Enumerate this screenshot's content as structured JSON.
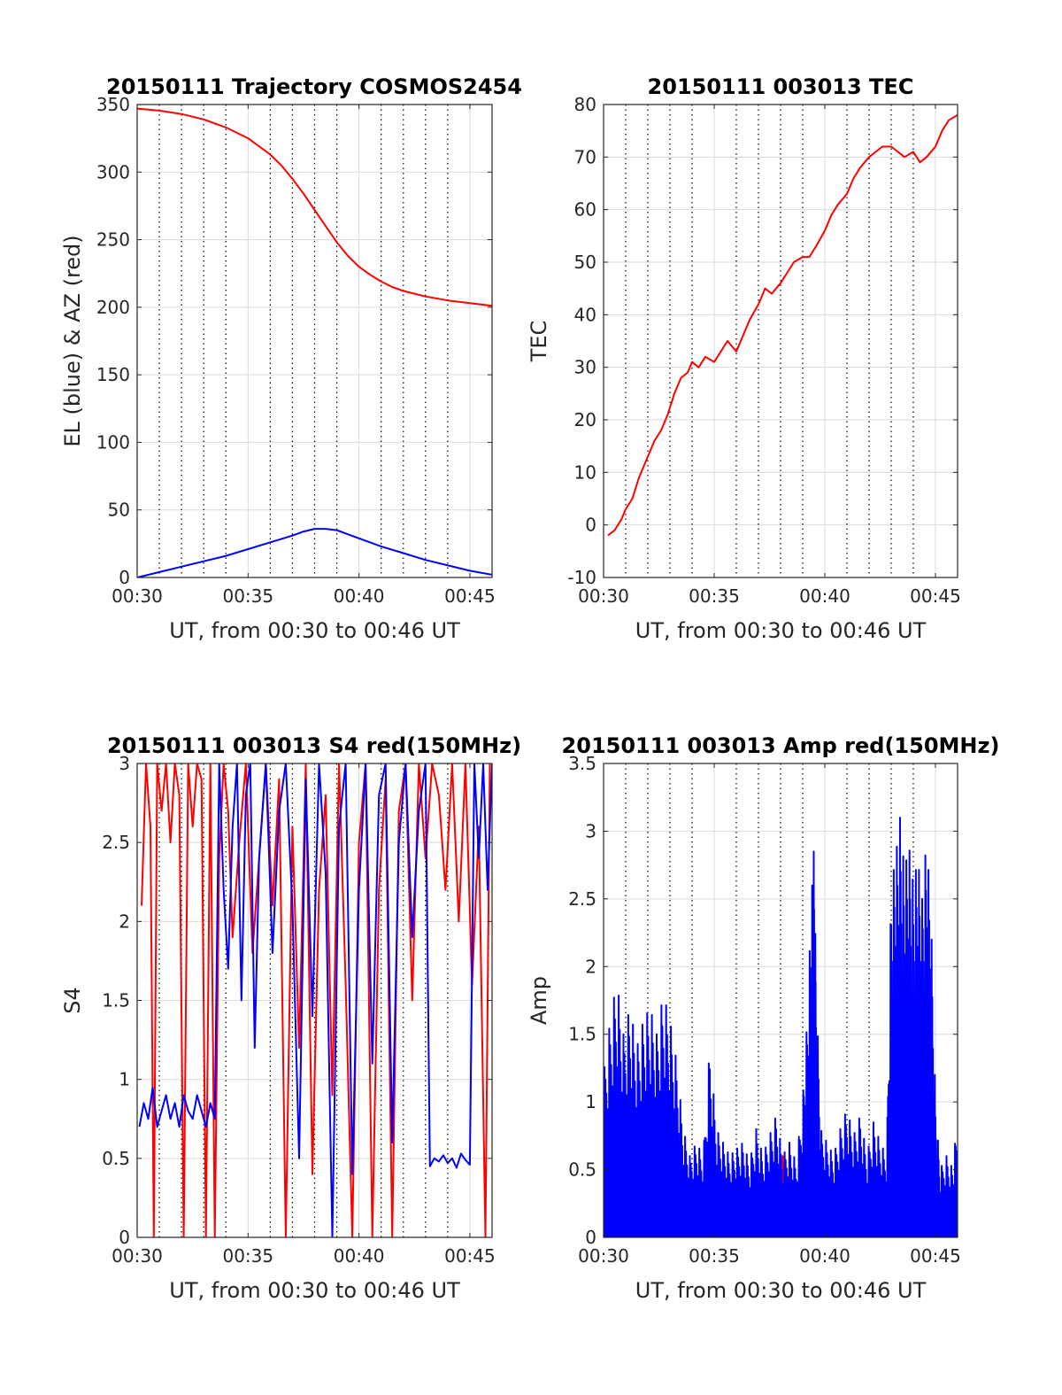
{
  "colors": {
    "red": "#ff0000",
    "blue": "#0000ff",
    "grid_major": "#d9d9d9",
    "grid_minor": "#000000",
    "axis": "#262626",
    "background": "#ffffff"
  },
  "chart_data": [
    {
      "id": "trajectory",
      "type": "line",
      "title": "20150111 Trajectory COSMOS2454",
      "xlabel": "UT, from 00:30 to 00:46 UT",
      "ylabel": "EL (blue) & AZ (red)",
      "xlim": [
        30,
        46
      ],
      "ylim": [
        0,
        350
      ],
      "xticks": [
        30,
        35,
        40,
        45
      ],
      "xtick_labels": [
        "00:30",
        "00:35",
        "00:40",
        "00:45"
      ],
      "yticks": [
        0,
        50,
        100,
        150,
        200,
        250,
        300,
        350
      ],
      "ytick_labels": [
        "0",
        "50",
        "100",
        "150",
        "200",
        "250",
        "300",
        "350"
      ],
      "grid": true,
      "minor_grid_x": [
        31,
        32,
        33,
        34,
        36,
        37,
        38,
        39,
        41,
        42,
        43,
        44
      ],
      "x_unit": "minutes after 00:00 UT",
      "series": [
        {
          "color": "red",
          "x": [
            30,
            31,
            32,
            33,
            34,
            35,
            36,
            36.5,
            37,
            37.5,
            38,
            38.5,
            39,
            39.5,
            40,
            40.5,
            41,
            41.5,
            42,
            43,
            44,
            45,
            46
          ],
          "y": [
            347,
            345.5,
            343,
            339,
            333,
            325,
            313,
            305,
            295,
            284,
            272,
            260,
            248,
            238,
            230,
            224,
            219,
            215,
            212,
            208,
            205,
            203,
            201
          ]
        },
        {
          "color": "blue",
          "x": [
            30,
            31,
            32,
            33,
            34,
            35,
            36,
            37,
            37.5,
            38,
            38.5,
            39,
            40,
            41,
            42,
            43,
            44,
            45,
            46
          ],
          "y": [
            0,
            4,
            8,
            12,
            16,
            21,
            26,
            31,
            34,
            36,
            36,
            35,
            29,
            23,
            18,
            13,
            9,
            5,
            2
          ]
        }
      ]
    },
    {
      "id": "tec",
      "type": "line",
      "title": "20150111 003013 TEC",
      "xlabel": "UT, from 00:30 to 00:46 UT",
      "ylabel": "TEC",
      "xlim": [
        30,
        46
      ],
      "ylim": [
        -10,
        80
      ],
      "xticks": [
        30,
        35,
        40,
        45
      ],
      "xtick_labels": [
        "00:30",
        "00:35",
        "00:40",
        "00:45"
      ],
      "yticks": [
        -10,
        0,
        10,
        20,
        30,
        40,
        50,
        60,
        70,
        80
      ],
      "ytick_labels": [
        "-10",
        "0",
        "10",
        "20",
        "30",
        "40",
        "50",
        "60",
        "70",
        "80"
      ],
      "grid": true,
      "minor_grid_x": [
        31,
        32,
        33,
        34,
        36,
        37,
        38,
        39,
        41,
        42,
        43,
        44
      ],
      "x_unit": "minutes after 00:00 UT",
      "series": [
        {
          "color": "red",
          "x": [
            30.2,
            30.5,
            30.8,
            31,
            31.3,
            31.6,
            32,
            32.3,
            32.6,
            32.9,
            33.2,
            33.5,
            33.8,
            34,
            34.3,
            34.6,
            35,
            35.3,
            35.6,
            36,
            36.3,
            36.6,
            37,
            37.3,
            37.6,
            38,
            38.3,
            38.6,
            39,
            39.3,
            39.6,
            40,
            40.3,
            40.6,
            41,
            41.3,
            41.6,
            42,
            42.3,
            42.6,
            43,
            43.3,
            43.6,
            44,
            44.3,
            44.6,
            45,
            45.3,
            45.6,
            46
          ],
          "y": [
            -2,
            -1,
            1,
            3,
            5,
            9,
            13,
            16,
            18,
            21,
            25,
            28,
            29,
            31,
            30,
            32,
            31,
            33,
            35,
            33,
            36,
            39,
            42,
            45,
            44,
            46,
            48,
            50,
            51,
            51,
            53,
            56,
            59,
            61,
            63,
            66,
            68,
            70,
            71,
            72,
            72,
            71,
            70,
            71,
            69,
            70,
            72,
            75,
            77,
            78
          ]
        }
      ]
    },
    {
      "id": "s4",
      "type": "line",
      "title": "20150111 003013 S4 red(150MHz)",
      "xlabel": "UT, from 00:30 to 00:46 UT",
      "ylabel": "S4",
      "xlim": [
        30,
        46
      ],
      "ylim": [
        0,
        3
      ],
      "xticks": [
        30,
        35,
        40,
        45
      ],
      "xtick_labels": [
        "00:30",
        "00:35",
        "00:40",
        "00:45"
      ],
      "yticks": [
        0,
        0.5,
        1,
        1.5,
        2,
        2.5,
        3
      ],
      "ytick_labels": [
        "0",
        "0.5",
        "1",
        "1.5",
        "2",
        "2.5",
        "3"
      ],
      "grid": true,
      "minor_grid_x": [
        31,
        32,
        33,
        34,
        36,
        37,
        38,
        39,
        41,
        42,
        43,
        44
      ],
      "x_unit": "minutes after 00:00 UT",
      "series": [
        {
          "color": "red",
          "x": [
            30.2,
            30.4,
            30.6,
            30.75,
            30.9,
            31.1,
            31.3,
            31.5,
            31.7,
            31.9,
            32.1,
            32.3,
            32.5,
            32.7,
            32.9,
            33.1,
            33.3,
            33.5,
            33.7,
            33.9,
            34.1,
            34.3,
            34.6,
            34.9,
            35.2,
            35.5,
            35.8,
            36.1,
            36.4,
            36.7,
            37.0,
            37.3,
            37.6,
            37.9,
            38.2,
            38.5,
            38.8,
            39.1,
            39.4,
            39.7,
            40.0,
            40.3,
            40.6,
            40.9,
            41.2,
            41.5,
            41.8,
            42.1,
            42.4,
            42.7,
            43.0,
            43.3,
            43.6,
            43.9,
            44.2,
            44.5,
            44.8,
            45.1,
            45.4,
            45.7,
            45.9
          ],
          "y": [
            2.1,
            3.0,
            2.6,
            0.0,
            3.0,
            2.7,
            3.0,
            2.5,
            3.0,
            2.8,
            0.0,
            3.0,
            2.6,
            3.0,
            2.9,
            0.0,
            3.0,
            0.0,
            2.4,
            3.0,
            2.7,
            1.9,
            2.5,
            3.0,
            1.8,
            2.4,
            3.0,
            2.1,
            2.9,
            0.0,
            2.6,
            1.2,
            3.0,
            0.4,
            2.2,
            2.8,
            0.9,
            3.0,
            1.6,
            0.0,
            2.5,
            3.0,
            0.0,
            2.2,
            2.9,
            0.0,
            2.7,
            3.0,
            1.5,
            3.0,
            2.4,
            3.0,
            2.8,
            2.2,
            3.0,
            2.0,
            3.0,
            1.6,
            2.6,
            0.0,
            3.0
          ]
        },
        {
          "color": "blue",
          "x": [
            30.1,
            30.3,
            30.5,
            30.7,
            30.9,
            31.1,
            31.3,
            31.5,
            31.7,
            31.9,
            32.1,
            32.3,
            32.5,
            32.7,
            32.9,
            33.1,
            33.3,
            33.5,
            33.7,
            33.9,
            34.1,
            34.3,
            34.5,
            34.7,
            34.9,
            35.1,
            35.3,
            35.5,
            35.8,
            36.1,
            36.4,
            36.7,
            37.0,
            37.3,
            37.6,
            37.9,
            38.2,
            38.5,
            38.8,
            39.1,
            39.4,
            39.7,
            40.0,
            40.3,
            40.6,
            40.9,
            41.2,
            41.5,
            41.8,
            42.1,
            42.4,
            42.7,
            43.0,
            43.2,
            43.4,
            43.6,
            43.8,
            44.0,
            44.2,
            44.4,
            44.6,
            44.8,
            45.0,
            45.2,
            45.4,
            45.6,
            45.8,
            46.0
          ],
          "y": [
            0.7,
            0.85,
            0.75,
            0.95,
            0.7,
            0.8,
            0.9,
            0.75,
            0.85,
            0.7,
            0.9,
            0.8,
            0.75,
            0.9,
            0.8,
            0.7,
            0.85,
            0.75,
            3.0,
            2.2,
            1.7,
            2.6,
            3.0,
            1.5,
            2.8,
            3.0,
            1.2,
            2.4,
            3.0,
            1.8,
            2.7,
            3.0,
            2.1,
            0.5,
            2.9,
            1.4,
            3.0,
            2.3,
            0.0,
            2.6,
            3.0,
            0.4,
            2.2,
            3.0,
            1.1,
            2.8,
            3.0,
            0.6,
            2.5,
            3.0,
            1.9,
            2.7,
            3.0,
            0.45,
            0.5,
            0.48,
            0.52,
            0.47,
            0.5,
            0.44,
            0.53,
            0.49,
            0.46,
            3.0,
            2.4,
            3.0,
            2.2,
            3.0
          ]
        }
      ]
    },
    {
      "id": "amp",
      "type": "line",
      "title": "20150111 003013 Amp red(150MHz)",
      "xlabel": "UT, from 00:30 to 00:46 UT",
      "ylabel": "Amp",
      "xlim": [
        30,
        46
      ],
      "ylim": [
        0,
        3.5
      ],
      "xticks": [
        30,
        35,
        40,
        45
      ],
      "xtick_labels": [
        "00:30",
        "00:35",
        "00:40",
        "00:45"
      ],
      "yticks": [
        0,
        0.5,
        1,
        1.5,
        2,
        2.5,
        3,
        3.5
      ],
      "ytick_labels": [
        "0",
        "0.5",
        "1",
        "1.5",
        "2",
        "2.5",
        "3",
        "3.5"
      ],
      "grid": true,
      "minor_grid_x": [
        31,
        32,
        33,
        34,
        36,
        37,
        38,
        39,
        41,
        42,
        43,
        44
      ],
      "x_unit": "minutes after 00:00 UT",
      "series": [
        {
          "color": "red",
          "x": [
            38.0,
            38.1,
            38.2,
            39.1,
            39.2,
            43.0,
            43.1,
            43.2,
            43.3,
            43.5,
            43.7,
            43.9,
            44.1,
            44.3,
            44.5
          ],
          "y": [
            0.2,
            0.6,
            0.1,
            0.1,
            0.3,
            0.1,
            0.2,
            0.05,
            0.15,
            0.05,
            0.1,
            0.05,
            0.08,
            0.05,
            0.1
          ]
        },
        {
          "color": "blue",
          "envelope": true,
          "x": [
            30.0,
            30.3,
            30.6,
            30.9,
            31.2,
            31.5,
            31.8,
            32.1,
            32.4,
            32.7,
            33.0,
            33.3,
            33.6,
            33.9,
            34.2,
            34.5,
            34.8,
            35.1,
            35.4,
            35.7,
            36.0,
            36.3,
            36.6,
            36.9,
            37.2,
            37.5,
            37.8,
            38.1,
            38.4,
            38.7,
            39.0,
            39.2,
            39.4,
            39.5,
            39.6,
            39.8,
            40.1,
            40.4,
            40.7,
            41.0,
            41.3,
            41.6,
            41.9,
            42.2,
            42.5,
            42.8,
            43.0,
            43.2,
            43.4,
            43.6,
            43.8,
            44.0,
            44.2,
            44.4,
            44.6,
            44.8,
            45.0,
            45.2,
            45.5,
            45.8,
            46.0
          ],
          "y": [
            1.2,
            1.6,
            1.9,
            1.5,
            1.7,
            1.4,
            1.6,
            1.7,
            1.5,
            1.8,
            1.6,
            1.3,
            0.8,
            0.6,
            0.7,
            0.6,
            1.4,
            0.8,
            0.7,
            0.6,
            0.65,
            0.7,
            0.55,
            0.8,
            0.6,
            0.75,
            0.9,
            0.6,
            0.7,
            0.55,
            1.0,
            1.6,
            2.5,
            2.85,
            2.0,
            0.8,
            0.7,
            0.6,
            0.8,
            0.95,
            0.75,
            0.9,
            0.6,
            0.85,
            0.7,
            0.6,
            2.6,
            2.8,
            3.1,
            2.7,
            2.9,
            2.6,
            2.8,
            2.5,
            2.95,
            2.4,
            1.0,
            0.5,
            0.6,
            0.5,
            0.95
          ]
        }
      ]
    }
  ]
}
